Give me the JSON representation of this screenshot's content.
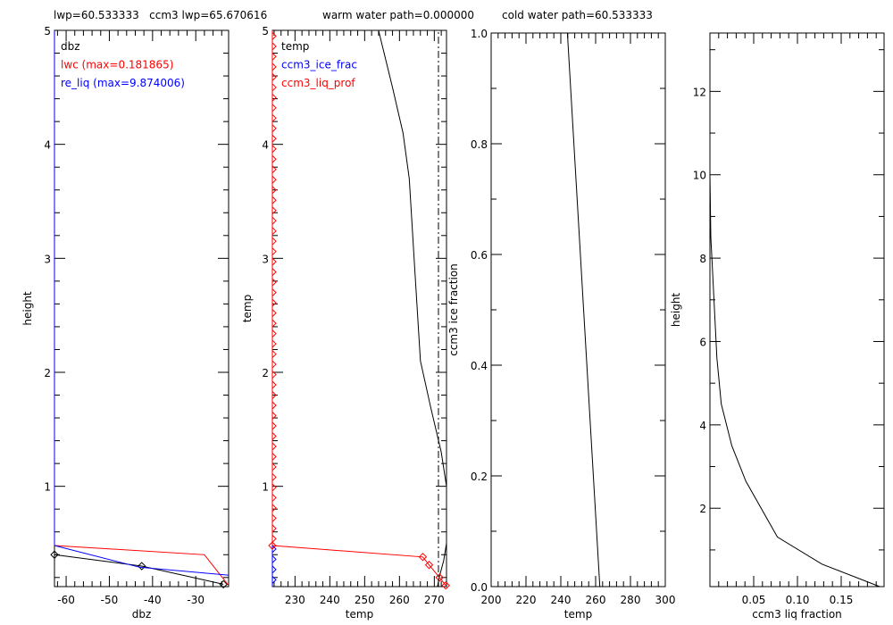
{
  "header": {
    "lwp_text": "lwp=60.533333   ccm3 lwp=65.670616",
    "warm_text": "warm water path=0.000000",
    "cold_text": "cold water path=60.533333"
  },
  "colors": {
    "axis": "#000000",
    "red": "#ff0000",
    "blue": "#0000ff"
  },
  "chart_data": [
    {
      "type": "line",
      "xlabel": "dbz",
      "ylabel": "height",
      "xlim": [
        -62.7,
        -22.4
      ],
      "ylim": [
        0.12,
        5
      ],
      "xticks": [
        -60,
        -50,
        -40,
        -30
      ],
      "xtick_labels": [
        "-60",
        "-50",
        "-40",
        "-30"
      ],
      "yticks": [
        1,
        2,
        3,
        4,
        5
      ],
      "ytick_labels": [
        "1",
        "2",
        "3",
        "4",
        "5"
      ],
      "legend": [
        "dbz",
        "lwc (max=0.181865)",
        "re_liq (max=9.874006)"
      ],
      "series": [
        {
          "name": "dbz",
          "color": "#000000",
          "x": [
            -62.7,
            -42.5,
            -23.6
          ],
          "y": [
            0.4,
            0.3,
            0.14
          ],
          "marker": "diamond"
        },
        {
          "name": "lwc",
          "color": "#ff0000",
          "x": [
            -62.7,
            -28,
            -22.4
          ],
          "y": [
            0.48,
            0.4,
            0.13
          ]
        },
        {
          "name": "re_liq",
          "color": "#0000ff",
          "x": [
            -62.7,
            -43,
            -22.4
          ],
          "y": [
            0.48,
            0.29,
            0.22
          ]
        }
      ]
    },
    {
      "type": "line",
      "xlabel": "temp",
      "ylabel": "temp",
      "xlim": [
        223.5,
        273.5
      ],
      "ylim": [
        0.12,
        5
      ],
      "xticks": [
        230,
        240,
        250,
        260,
        270
      ],
      "xtick_labels": [
        "230",
        "240",
        "250",
        "260",
        "270"
      ],
      "yticks": [
        1,
        2,
        3,
        4,
        5
      ],
      "ytick_labels": [
        "1",
        "2",
        "3",
        "4",
        "5"
      ],
      "legend": [
        "temp",
        "ccm3_ice_frac",
        "ccm3_liq_prof"
      ],
      "series": [
        {
          "name": "temp",
          "color": "#000000",
          "x": [
            254,
            258,
            261,
            262.8,
            264.4,
            266,
            268.9,
            272,
            273.5,
            273.5,
            272.7,
            271.4,
            270.9
          ],
          "y": [
            5,
            4.5,
            4.1,
            3.7,
            2.9,
            2.1,
            1.7,
            1.3,
            1.0,
            0.5,
            0.35,
            0.2,
            0.12
          ]
        },
        {
          "name": "ccm3_liq_prof",
          "color": "#ff0000",
          "x": [
            223.5,
            266.7,
            268.5,
            271.5,
            273.3
          ],
          "y": [
            0.48,
            0.38,
            0.31,
            0.2,
            0.13
          ],
          "marker": "diamond"
        },
        {
          "name": "freezing-line",
          "color": "#000000",
          "x": [
            271.2,
            271.2
          ],
          "y": [
            0.12,
            5
          ],
          "dash": "dashdot"
        }
      ]
    },
    {
      "type": "line",
      "xlabel": "temp",
      "ylabel": "ccm3 ice fraction",
      "xlim": [
        200,
        300
      ],
      "ylim": [
        0,
        1
      ],
      "xticks": [
        200,
        220,
        240,
        260,
        280,
        300
      ],
      "xtick_labels": [
        "200",
        "220",
        "240",
        "260",
        "280",
        "300"
      ],
      "yticks": [
        0,
        0.2,
        0.4,
        0.6,
        0.8,
        1.0
      ],
      "ytick_labels": [
        "0.0",
        "0.2",
        "0.4",
        "0.6",
        "0.8",
        "1.0"
      ],
      "series": [
        {
          "name": "ice_frac",
          "color": "#000000",
          "x": [
            243.8,
            262.4
          ],
          "y": [
            1.0,
            0.0
          ]
        }
      ]
    },
    {
      "type": "line",
      "xlabel": "ccm3 liq fraction",
      "ylabel": "height",
      "xlim": [
        0,
        0.199
      ],
      "ylim": [
        0.12,
        13.4
      ],
      "xticks": [
        0.05,
        0.1,
        0.15
      ],
      "xtick_labels": [
        "0.05",
        "0.10",
        "0.15"
      ],
      "yticks": [
        2,
        4,
        6,
        8,
        10,
        12
      ],
      "ytick_labels": [
        "2",
        "4",
        "6",
        "8",
        "10",
        "12"
      ],
      "series": [
        {
          "name": "liq_frac",
          "color": "#000000",
          "x": [
            0.0,
            0.001,
            0.003,
            0.008,
            0.013,
            0.025,
            0.041,
            0.077,
            0.128,
            0.194
          ],
          "y": [
            10,
            8.5,
            7.7,
            5.6,
            4.5,
            3.5,
            2.65,
            1.31,
            0.66,
            0.12
          ]
        }
      ]
    }
  ]
}
